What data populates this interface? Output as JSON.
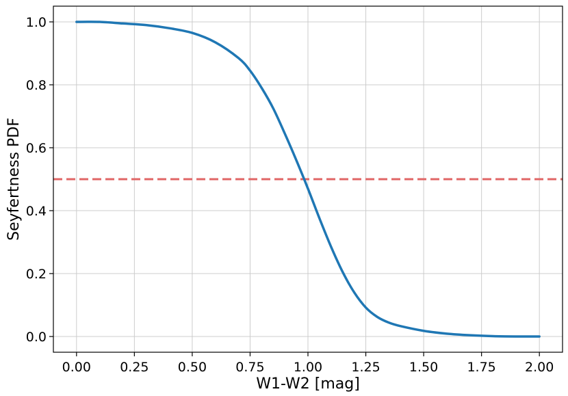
{
  "chart_data": {
    "type": "line",
    "title": "",
    "xlabel": "W1-W2 [mag]",
    "ylabel": "Seyfertness PDF",
    "xlim": [
      -0.1,
      2.1
    ],
    "ylim": [
      -0.05,
      1.05
    ],
    "xticks": [
      0.0,
      0.25,
      0.5,
      0.75,
      1.0,
      1.25,
      1.5,
      1.75,
      2.0
    ],
    "xtick_labels": [
      "0.00",
      "0.25",
      "0.50",
      "0.75",
      "1.00",
      "1.25",
      "1.50",
      "1.75",
      "2.00"
    ],
    "yticks": [
      0.0,
      0.2,
      0.4,
      0.6,
      0.8,
      1.0
    ],
    "ytick_labels": [
      "0.0",
      "0.2",
      "0.4",
      "0.6",
      "0.8",
      "1.0"
    ],
    "grid": true,
    "series": [
      {
        "color": "#1f77b4",
        "style": "solid",
        "x": [
          0.0,
          0.1,
          0.2,
          0.3,
          0.4,
          0.5,
          0.6,
          0.7,
          0.75,
          0.8,
          0.85,
          0.9,
          0.95,
          1.0,
          1.05,
          1.1,
          1.15,
          1.2,
          1.25,
          1.3,
          1.35,
          1.4,
          1.5,
          1.6,
          1.7,
          1.8,
          1.9,
          2.0
        ],
        "y": [
          1.0,
          1.0,
          0.995,
          0.99,
          0.98,
          0.965,
          0.935,
          0.885,
          0.845,
          0.79,
          0.725,
          0.645,
          0.56,
          0.47,
          0.375,
          0.285,
          0.205,
          0.14,
          0.092,
          0.062,
          0.044,
          0.033,
          0.018,
          0.009,
          0.004,
          0.001,
          0.0,
          0.0
        ]
      }
    ],
    "hlines": [
      {
        "y": 0.5,
        "color": "#e06666",
        "style": "dashed"
      }
    ]
  }
}
